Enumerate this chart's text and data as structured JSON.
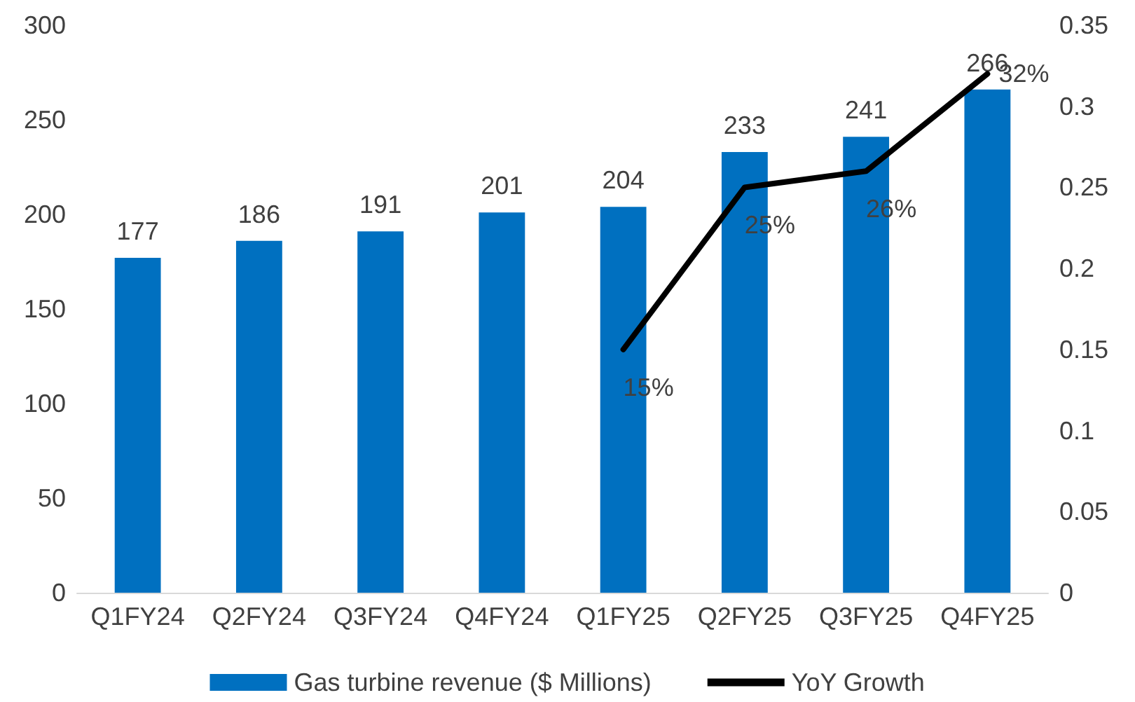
{
  "chart_data": {
    "type": "bar",
    "categories": [
      "Q1FY24",
      "Q2FY24",
      "Q3FY24",
      "Q4FY24",
      "Q1FY25",
      "Q2FY25",
      "Q3FY25",
      "Q4FY25"
    ],
    "series": [
      {
        "name": "Gas turbine revenue ($ Millions)",
        "color": "#0070c0",
        "values": [
          177,
          186,
          191,
          201,
          204,
          233,
          241,
          266
        ]
      },
      {
        "name": "YoY Growth",
        "type": "line",
        "axis": "y2",
        "color": "#000000",
        "values": [
          null,
          null,
          null,
          null,
          0.15,
          0.25,
          0.26,
          0.32
        ],
        "value_labels": [
          null,
          null,
          null,
          null,
          "15%",
          "25%",
          "26%",
          "32%"
        ]
      }
    ],
    "data_labels": true,
    "ylim": [
      0,
      300
    ],
    "yticks": [
      0,
      50,
      100,
      150,
      200,
      250,
      300
    ],
    "y2lim": [
      0,
      0.35
    ],
    "y2ticks": [
      0,
      0.05,
      0.1,
      0.15,
      0.2,
      0.25,
      0.3,
      0.35
    ],
    "grid": false,
    "legend": "bottom",
    "marker": "none",
    "line_style": "solid"
  }
}
